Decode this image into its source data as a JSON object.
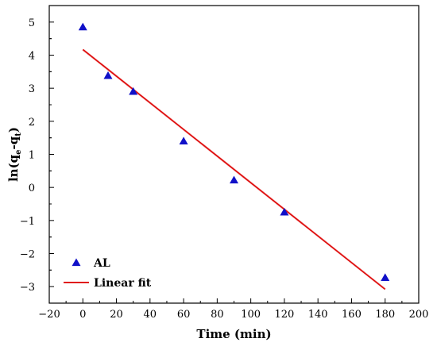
{
  "chart_data": {
    "type": "scatter",
    "title": "",
    "xlabel": "Time (min)",
    "ylabel_parts": {
      "base": "ln(q",
      "sub1": "e",
      "mid": "-q",
      "sub2": "t",
      "end": ")"
    },
    "xlim": [
      -20,
      200
    ],
    "ylim": [
      -3.5,
      5.5
    ],
    "xticks": [
      -20,
      0,
      20,
      40,
      60,
      80,
      100,
      120,
      140,
      160,
      180,
      200
    ],
    "xtick_labels": [
      "−20",
      "0",
      "20",
      "40",
      "60",
      "80",
      "100",
      "120",
      "140",
      "160",
      "180",
      "200"
    ],
    "yticks": [
      -3,
      -2,
      -1,
      0,
      1,
      2,
      3,
      4,
      5
    ],
    "ytick_labels": [
      "−3",
      "−2",
      "−1",
      "0",
      "1",
      "2",
      "3",
      "4",
      "5"
    ],
    "grid": false,
    "legend_position": "bottom-left",
    "series": [
      {
        "name": "AL",
        "kind": "scatter",
        "marker": "triangle",
        "color": "#1010c8",
        "x": [
          0,
          15,
          30,
          60,
          90,
          120,
          180
        ],
        "y": [
          4.85,
          3.38,
          2.9,
          1.4,
          0.22,
          -0.75,
          -2.73
        ]
      },
      {
        "name": "Linear fit",
        "kind": "line",
        "color": "#e01818",
        "x": [
          0,
          180
        ],
        "y": [
          4.17,
          -3.08
        ]
      }
    ]
  }
}
